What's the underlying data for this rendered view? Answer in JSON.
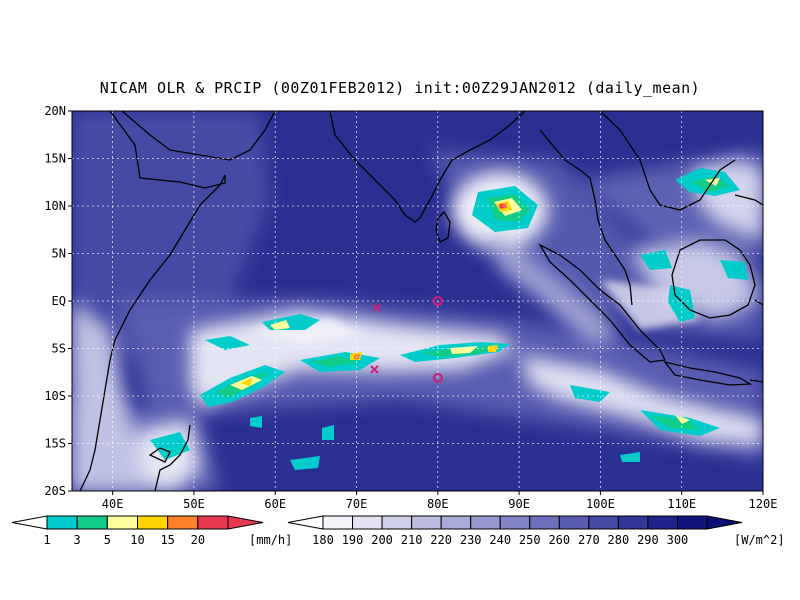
{
  "title": "NICAM OLR & PRCIP (00Z01FEB2012) init:00Z29JAN2012 (daily_mean)",
  "map": {
    "lon_range": [
      35,
      120
    ],
    "lat_range": [
      -20,
      20
    ],
    "lat_ticks": [
      "20N",
      "15N",
      "10N",
      "5N",
      "EQ",
      "5S",
      "10S",
      "15S",
      "20S"
    ],
    "lon_ticks": [
      "40E",
      "50E",
      "60E",
      "70E",
      "80E",
      "90E",
      "100E",
      "110E",
      "120E"
    ],
    "markers": [
      {
        "type": "x",
        "label": "x",
        "lon": 72.5,
        "lat": -0.7,
        "color": "#cc1f7a"
      },
      {
        "type": "x",
        "label": "x",
        "lon": 72.2,
        "lat": -7.2,
        "color": "#cc1f7a"
      },
      {
        "type": "circle",
        "label": "o",
        "lon": 80,
        "lat": 0,
        "color": "#cc1f7a"
      },
      {
        "type": "circle",
        "label": "o",
        "lon": 80,
        "lat": -8.1,
        "color": "#cc1f7a"
      }
    ]
  },
  "precip_colorbar": {
    "labels": [
      "1",
      "3",
      "5",
      "10",
      "15",
      "20"
    ],
    "unit": "[mm/h]",
    "colors": [
      "#00cccc",
      "#10cc88",
      "#ffff99",
      "#ffd400",
      "#ff7f2a",
      "#e8384f"
    ]
  },
  "olr_colorbar": {
    "labels": [
      "180",
      "190",
      "200",
      "210",
      "220",
      "230",
      "240",
      "250",
      "260",
      "270",
      "280",
      "290",
      "300"
    ],
    "unit": "[W/m^2]",
    "colors": [
      "#f4f4fb",
      "#e2e2f2",
      "#cfd0ea",
      "#bcbde1",
      "#a8aad8",
      "#9597ce",
      "#8184c4",
      "#6c70ba",
      "#585caf",
      "#4449a3",
      "#313697",
      "#1f248a",
      "#10157e"
    ]
  }
}
